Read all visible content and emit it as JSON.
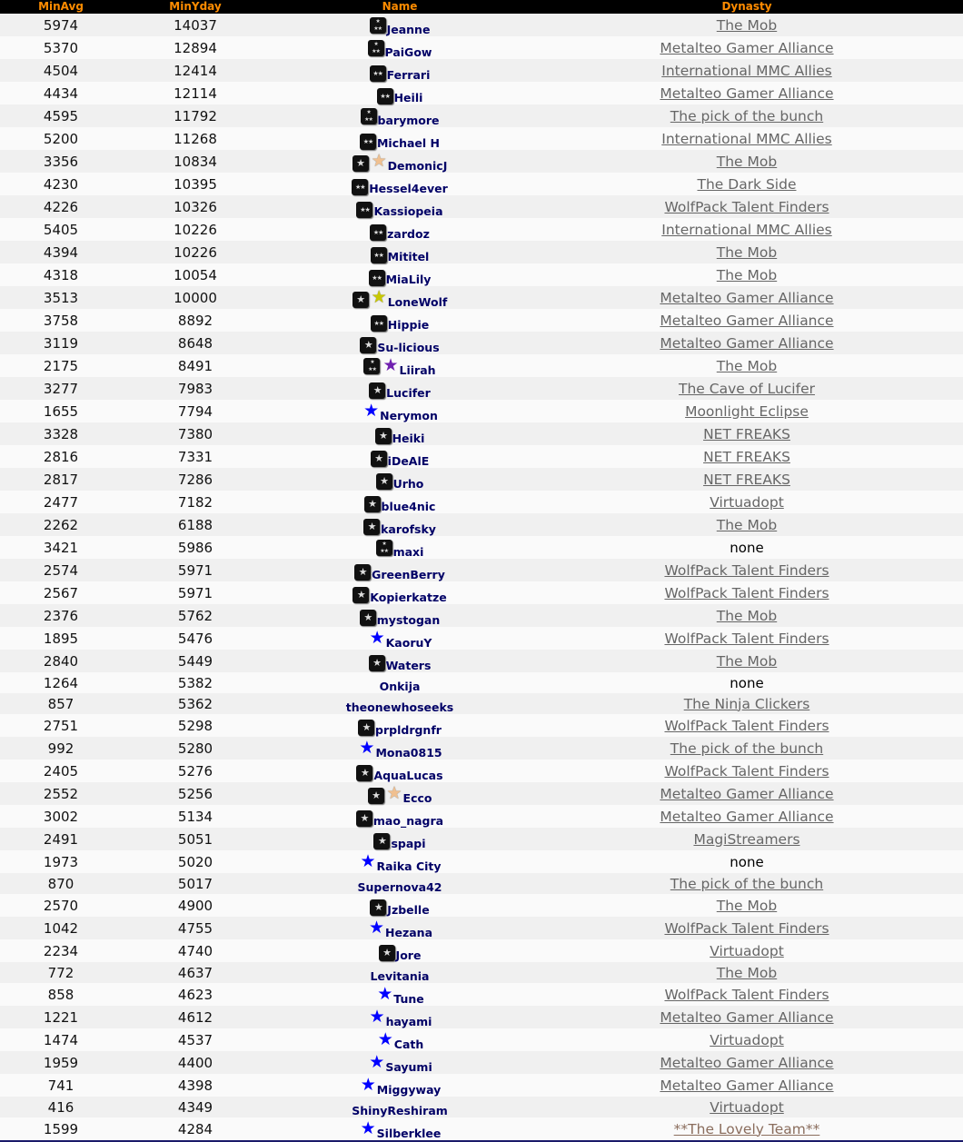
{
  "header": {
    "minavg": "MinAvg",
    "minyday": "MinYday",
    "name": "Name",
    "dynasty": "Dynasty"
  },
  "colors": {
    "header_bg": "#000000",
    "header_text": "#ff8c00",
    "name_text": "#000066",
    "link": "#666666",
    "star_blue": "#0000ff",
    "star_tan": "#f0c090",
    "star_yellow": "#c8c800",
    "star_purple": "#7020b0"
  },
  "rows": [
    {
      "minavg": "5974",
      "minyday": "14037",
      "name": "Jeanne",
      "badge": "3-star",
      "extra": "",
      "dynasty": "The Mob"
    },
    {
      "minavg": "5370",
      "minyday": "12894",
      "name": "PaiGow",
      "badge": "3-star",
      "extra": "",
      "dynasty": "Metalteo Gamer Alliance"
    },
    {
      "minavg": "4504",
      "minyday": "12414",
      "name": "Ferrari",
      "badge": "2-star",
      "extra": "",
      "dynasty": "International MMC Allies"
    },
    {
      "minavg": "4434",
      "minyday": "12114",
      "name": "Heili",
      "badge": "2-star",
      "extra": "",
      "dynasty": "Metalteo Gamer Alliance"
    },
    {
      "minavg": "4595",
      "minyday": "11792",
      "name": "barymore",
      "badge": "3-star",
      "extra": "",
      "dynasty": "The pick of the bunch"
    },
    {
      "minavg": "5200",
      "minyday": "11268",
      "name": "Michael H",
      "badge": "2-star",
      "extra": "",
      "dynasty": "International MMC Allies"
    },
    {
      "minavg": "3356",
      "minyday": "10834",
      "name": "DemonicJ",
      "badge": "1-star",
      "extra": "tan",
      "dynasty": "The Mob"
    },
    {
      "minavg": "4230",
      "minyday": "10395",
      "name": "Hessel4ever",
      "badge": "2-star",
      "extra": "",
      "dynasty": "The Dark Side"
    },
    {
      "minavg": "4226",
      "minyday": "10326",
      "name": "Kassiopeia",
      "badge": "2-star",
      "extra": "",
      "dynasty": "WolfPack Talent Finders"
    },
    {
      "minavg": "5405",
      "minyday": "10226",
      "name": "zardoz",
      "badge": "2-star",
      "extra": "",
      "dynasty": "International MMC Allies"
    },
    {
      "minavg": "4394",
      "minyday": "10226",
      "name": "Mititel",
      "badge": "2-star",
      "extra": "",
      "dynasty": "The Mob"
    },
    {
      "minavg": "4318",
      "minyday": "10054",
      "name": "MiaLily",
      "badge": "2-star",
      "extra": "",
      "dynasty": "The Mob"
    },
    {
      "minavg": "3513",
      "minyday": "10000",
      "name": "LoneWolf",
      "badge": "1-star",
      "extra": "yellow",
      "dynasty": "Metalteo Gamer Alliance"
    },
    {
      "minavg": "3758",
      "minyday": "8892",
      "name": "Hippie",
      "badge": "2-star",
      "extra": "",
      "dynasty": "Metalteo Gamer Alliance"
    },
    {
      "minavg": "3119",
      "minyday": "8648",
      "name": "Su-licious",
      "badge": "1-star",
      "extra": "",
      "dynasty": "Metalteo Gamer Alliance"
    },
    {
      "minavg": "2175",
      "minyday": "8491",
      "name": "Liirah",
      "badge": "3-star",
      "extra": "purple",
      "dynasty": "The Mob"
    },
    {
      "minavg": "3277",
      "minyday": "7983",
      "name": "Lucifer",
      "badge": "1-star",
      "extra": "",
      "dynasty": "The Cave of Lucifer"
    },
    {
      "minavg": "1655",
      "minyday": "7794",
      "name": "Nerymon",
      "badge": "",
      "extra": "blue",
      "dynasty": "Moonlight Eclipse"
    },
    {
      "minavg": "3328",
      "minyday": "7380",
      "name": "Heiki",
      "badge": "1-star",
      "extra": "",
      "dynasty": "NET FREAKS"
    },
    {
      "minavg": "2816",
      "minyday": "7331",
      "name": "iDeAlE",
      "badge": "1-star",
      "extra": "",
      "dynasty": "NET FREAKS"
    },
    {
      "minavg": "2817",
      "minyday": "7286",
      "name": "Urho",
      "badge": "1-star",
      "extra": "",
      "dynasty": "NET FREAKS"
    },
    {
      "minavg": "2477",
      "minyday": "7182",
      "name": "blue4nic",
      "badge": "1-star",
      "extra": "",
      "dynasty": "Virtuadopt"
    },
    {
      "minavg": "2262",
      "minyday": "6188",
      "name": "karofsky",
      "badge": "1-star",
      "extra": "",
      "dynasty": "The Mob"
    },
    {
      "minavg": "3421",
      "minyday": "5986",
      "name": "maxi",
      "badge": "3-star",
      "extra": "",
      "dynasty": "none"
    },
    {
      "minavg": "2574",
      "minyday": "5971",
      "name": "GreenBerry",
      "badge": "1-star",
      "extra": "",
      "dynasty": "WolfPack Talent Finders"
    },
    {
      "minavg": "2567",
      "minyday": "5971",
      "name": "Kopierkatze",
      "badge": "1-star",
      "extra": "",
      "dynasty": "WolfPack Talent Finders"
    },
    {
      "minavg": "2376",
      "minyday": "5762",
      "name": "mystogan",
      "badge": "1-star",
      "extra": "",
      "dynasty": "The Mob"
    },
    {
      "minavg": "1895",
      "minyday": "5476",
      "name": "KaoruY",
      "badge": "",
      "extra": "blue",
      "dynasty": "WolfPack Talent Finders"
    },
    {
      "minavg": "2840",
      "minyday": "5449",
      "name": "Waters",
      "badge": "1-star",
      "extra": "",
      "dynasty": "The Mob"
    },
    {
      "minavg": "1264",
      "minyday": "5382",
      "name": "Onkija",
      "badge": "",
      "extra": "",
      "dynasty": "none"
    },
    {
      "minavg": "857",
      "minyday": "5362",
      "name": "theonewhoseeks",
      "badge": "",
      "extra": "",
      "dynasty": "The Ninja Clickers"
    },
    {
      "minavg": "2751",
      "minyday": "5298",
      "name": "prpldrgnfr",
      "badge": "1-star",
      "extra": "",
      "dynasty": "WolfPack Talent Finders"
    },
    {
      "minavg": "992",
      "minyday": "5280",
      "name": "Mona0815",
      "badge": "",
      "extra": "blue",
      "dynasty": "The pick of the bunch"
    },
    {
      "minavg": "2405",
      "minyday": "5276",
      "name": "AquaLucas",
      "badge": "1-star",
      "extra": "",
      "dynasty": "WolfPack Talent Finders"
    },
    {
      "minavg": "2552",
      "minyday": "5256",
      "name": "Ecco",
      "badge": "1-star",
      "extra": "tan",
      "dynasty": "Metalteo Gamer Alliance"
    },
    {
      "minavg": "3002",
      "minyday": "5134",
      "name": "mao_nagra",
      "badge": "1-star",
      "extra": "",
      "dynasty": "Metalteo Gamer Alliance"
    },
    {
      "minavg": "2491",
      "minyday": "5051",
      "name": "spapi",
      "badge": "1-star",
      "extra": "",
      "dynasty": "MagiStreamers"
    },
    {
      "minavg": "1973",
      "minyday": "5020",
      "name": "Raika City",
      "badge": "",
      "extra": "blue",
      "dynasty": "none"
    },
    {
      "minavg": "870",
      "minyday": "5017",
      "name": "Supernova42",
      "badge": "",
      "extra": "",
      "dynasty": "The pick of the bunch"
    },
    {
      "minavg": "2570",
      "minyday": "4900",
      "name": "Jzbelle",
      "badge": "1-star",
      "extra": "",
      "dynasty": "The Mob"
    },
    {
      "minavg": "1042",
      "minyday": "4755",
      "name": "Hezana",
      "badge": "",
      "extra": "blue",
      "dynasty": "WolfPack Talent Finders"
    },
    {
      "minavg": "2234",
      "minyday": "4740",
      "name": "Jore",
      "badge": "1-star",
      "extra": "",
      "dynasty": "Virtuadopt"
    },
    {
      "minavg": "772",
      "minyday": "4637",
      "name": "Levitania",
      "badge": "",
      "extra": "",
      "dynasty": "The Mob"
    },
    {
      "minavg": "858",
      "minyday": "4623",
      "name": "Tune",
      "badge": "",
      "extra": "blue",
      "dynasty": "WolfPack Talent Finders"
    },
    {
      "minavg": "1221",
      "minyday": "4612",
      "name": "hayami",
      "badge": "",
      "extra": "blue",
      "dynasty": "Metalteo Gamer Alliance"
    },
    {
      "minavg": "1474",
      "minyday": "4537",
      "name": "Cath",
      "badge": "",
      "extra": "blue",
      "dynasty": "Virtuadopt"
    },
    {
      "minavg": "1959",
      "minyday": "4400",
      "name": "Sayumi",
      "badge": "",
      "extra": "blue",
      "dynasty": "Metalteo Gamer Alliance"
    },
    {
      "minavg": "741",
      "minyday": "4398",
      "name": "Miggyway",
      "badge": "",
      "extra": "blue",
      "dynasty": "Metalteo Gamer Alliance"
    },
    {
      "minavg": "416",
      "minyday": "4349",
      "name": "ShinyReshiram",
      "badge": "",
      "extra": "",
      "dynasty": "Virtuadopt"
    },
    {
      "minavg": "1599",
      "minyday": "4284",
      "name": "Silberklee",
      "badge": "",
      "extra": "blue",
      "dynasty": "**The Lovely Team**"
    }
  ]
}
